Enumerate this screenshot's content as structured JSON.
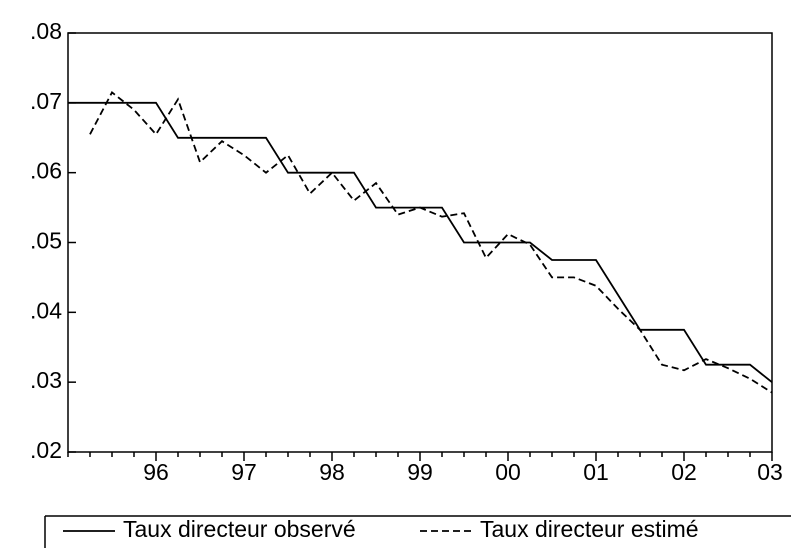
{
  "chart_data": {
    "type": "line",
    "categories": [
      null,
      null,
      null,
      null,
      "96",
      null,
      null,
      null,
      "97",
      null,
      null,
      null,
      "98",
      null,
      null,
      null,
      "99",
      null,
      null,
      null,
      "00",
      null,
      null,
      null,
      "01",
      null,
      null,
      null,
      "02",
      null,
      null,
      null,
      "03"
    ],
    "series": [
      {
        "name": "Taux directeur observé",
        "color": "#000000",
        "dash": false,
        "values": [
          0.07,
          0.07,
          0.07,
          0.07,
          0.07,
          0.065,
          0.065,
          0.065,
          0.065,
          0.065,
          0.06,
          0.06,
          0.06,
          0.06,
          0.055,
          0.055,
          0.055,
          0.055,
          0.05,
          0.05,
          0.05,
          0.05,
          0.0475,
          0.0475,
          0.0475,
          0.0425,
          0.0375,
          0.0375,
          0.0375,
          0.0325,
          0.0325,
          0.0325,
          0.03
        ]
      },
      {
        "name": "Taux directeur estimé",
        "color": "#000000",
        "dash": true,
        "values": [
          null,
          0.0655,
          0.0715,
          0.069,
          0.0655,
          0.0705,
          0.0615,
          0.0645,
          0.0625,
          0.06,
          0.0625,
          0.057,
          0.06,
          0.056,
          0.0585,
          0.054,
          0.055,
          0.0537,
          0.0542,
          0.0478,
          0.0512,
          0.0497,
          0.045,
          0.045,
          0.0438,
          0.0405,
          0.0375,
          0.0325,
          0.0317,
          0.0333,
          0.032,
          0.0305,
          0.0285
        ]
      }
    ],
    "ylim": [
      0.02,
      0.08
    ],
    "yticks": [
      {
        "value": 0.02,
        "label": ".02"
      },
      {
        "value": 0.03,
        "label": ".03"
      },
      {
        "value": 0.04,
        "label": ".04"
      },
      {
        "value": 0.05,
        "label": ".05"
      },
      {
        "value": 0.06,
        "label": ".06"
      },
      {
        "value": 0.07,
        "label": ".07"
      },
      {
        "value": 0.08,
        "label": ".08"
      }
    ],
    "legend": "bottom"
  }
}
